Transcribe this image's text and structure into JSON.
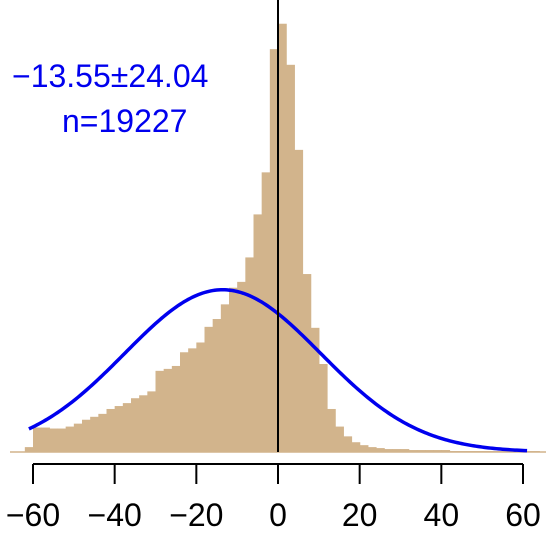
{
  "chart_data": {
    "type": "bar",
    "title": "",
    "xlabel": "",
    "ylabel": "",
    "xlim": [
      -62,
      64
    ],
    "ylim": [
      0,
      0.045
    ],
    "x_ticks": [
      -60,
      -40,
      -20,
      0,
      20,
      40,
      60
    ],
    "x_tick_labels": [
      "−60",
      "−40",
      "−20",
      "0",
      "20",
      "40",
      "60"
    ],
    "bin_width": 2,
    "bins": [
      {
        "x0": -62,
        "x1": -60,
        "density": 0.0005
      },
      {
        "x0": -60,
        "x1": -58,
        "density": 0.0025
      },
      {
        "x0": -58,
        "x1": -56,
        "density": 0.0025
      },
      {
        "x0": -56,
        "x1": -54,
        "density": 0.0024
      },
      {
        "x0": -54,
        "x1": -52,
        "density": 0.0024
      },
      {
        "x0": -52,
        "x1": -50,
        "density": 0.0026
      },
      {
        "x0": -50,
        "x1": -48,
        "density": 0.0029
      },
      {
        "x0": -48,
        "x1": -46,
        "density": 0.0033
      },
      {
        "x0": -46,
        "x1": -44,
        "density": 0.0036
      },
      {
        "x0": -44,
        "x1": -42,
        "density": 0.0039
      },
      {
        "x0": -42,
        "x1": -40,
        "density": 0.0044
      },
      {
        "x0": -40,
        "x1": -38,
        "density": 0.0047
      },
      {
        "x0": -38,
        "x1": -36,
        "density": 0.005
      },
      {
        "x0": -36,
        "x1": -34,
        "density": 0.0055
      },
      {
        "x0": -34,
        "x1": -32,
        "density": 0.0058
      },
      {
        "x0": -32,
        "x1": -30,
        "density": 0.0062
      },
      {
        "x0": -30,
        "x1": -28,
        "density": 0.0083
      },
      {
        "x0": -28,
        "x1": -26,
        "density": 0.0085
      },
      {
        "x0": -26,
        "x1": -24,
        "density": 0.0088
      },
      {
        "x0": -24,
        "x1": -22,
        "density": 0.0102
      },
      {
        "x0": -22,
        "x1": -20,
        "density": 0.0106
      },
      {
        "x0": -20,
        "x1": -18,
        "density": 0.0112
      },
      {
        "x0": -18,
        "x1": -16,
        "density": 0.0128
      },
      {
        "x0": -16,
        "x1": -14,
        "density": 0.0136
      },
      {
        "x0": -14,
        "x1": -12,
        "density": 0.0151
      },
      {
        "x0": -12,
        "x1": -10,
        "density": 0.0168
      },
      {
        "x0": -10,
        "x1": -8,
        "density": 0.0174
      },
      {
        "x0": -8,
        "x1": -6,
        "density": 0.0199
      },
      {
        "x0": -6,
        "x1": -4,
        "density": 0.0243
      },
      {
        "x0": -4,
        "x1": -2,
        "density": 0.0286
      },
      {
        "x0": -2,
        "x1": 0,
        "density": 0.0412
      },
      {
        "x0": 0,
        "x1": 2,
        "density": 0.0438
      },
      {
        "x0": 2,
        "x1": 4,
        "density": 0.0396
      },
      {
        "x0": 4,
        "x1": 6,
        "density": 0.0309
      },
      {
        "x0": 6,
        "x1": 8,
        "density": 0.0182
      },
      {
        "x0": 8,
        "x1": 10,
        "density": 0.0127
      },
      {
        "x0": 10,
        "x1": 12,
        "density": 0.009
      },
      {
        "x0": 12,
        "x1": 14,
        "density": 0.0044
      },
      {
        "x0": 14,
        "x1": 16,
        "density": 0.0026
      },
      {
        "x0": 16,
        "x1": 18,
        "density": 0.0016
      },
      {
        "x0": 18,
        "x1": 20,
        "density": 0.001
      },
      {
        "x0": 20,
        "x1": 22,
        "density": 0.0007
      },
      {
        "x0": 22,
        "x1": 24,
        "density": 0.0005
      },
      {
        "x0": 24,
        "x1": 26,
        "density": 0.0004
      },
      {
        "x0": 26,
        "x1": 28,
        "density": 0.0003
      },
      {
        "x0": 28,
        "x1": 30,
        "density": 0.0003
      },
      {
        "x0": 30,
        "x1": 32,
        "density": 0.0003
      },
      {
        "x0": 32,
        "x1": 34,
        "density": 0.0002
      },
      {
        "x0": 34,
        "x1": 36,
        "density": 0.0002
      },
      {
        "x0": 36,
        "x1": 38,
        "density": 0.0002
      },
      {
        "x0": 38,
        "x1": 40,
        "density": 0.0002
      },
      {
        "x0": 40,
        "x1": 42,
        "density": 0.0002
      },
      {
        "x0": 42,
        "x1": 44,
        "density": 0.0001
      },
      {
        "x0": 44,
        "x1": 46,
        "density": 0.0001
      },
      {
        "x0": 46,
        "x1": 48,
        "density": 0.0001
      },
      {
        "x0": 48,
        "x1": 50,
        "density": 0.0001
      },
      {
        "x0": 50,
        "x1": 52,
        "density": 0.0001
      },
      {
        "x0": 52,
        "x1": 54,
        "density": 0.0001
      },
      {
        "x0": 54,
        "x1": 56,
        "density": 0.0001
      },
      {
        "x0": 56,
        "x1": 58,
        "density": 0.0001
      },
      {
        "x0": 58,
        "x1": 60,
        "density": 0.0001
      },
      {
        "x0": 60,
        "x1": 62,
        "density": 0.0001
      },
      {
        "x0": 62,
        "x1": 64,
        "density": 0.0001
      }
    ],
    "normal_fit": {
      "mean": -13.55,
      "sd": 24.04,
      "x_range": [
        -61,
        61
      ]
    },
    "reference_line_x": 0,
    "annotation": {
      "mean_sd_label": "−13.55±24.04",
      "n_label": "n=19227"
    },
    "colors": {
      "histogram": "#d2b48c",
      "fit_curve": "#0000ee",
      "reference_line": "#000000",
      "axis": "#000000"
    }
  }
}
